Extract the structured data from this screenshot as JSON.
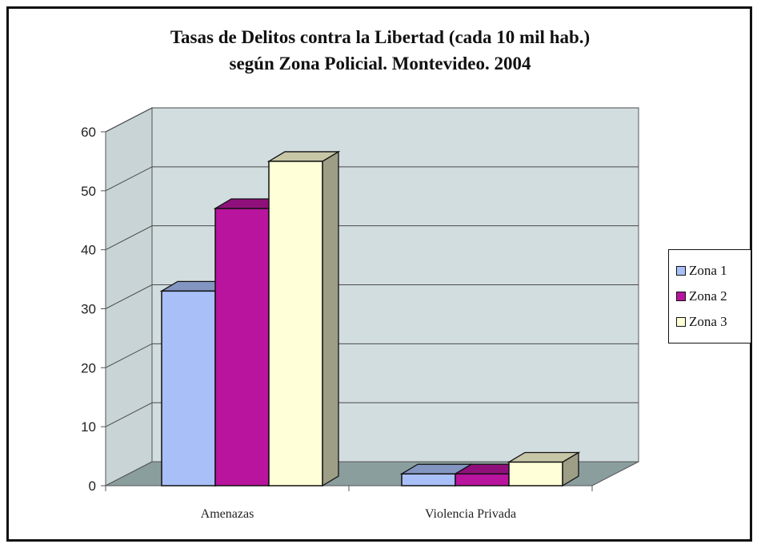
{
  "chart_data": {
    "type": "bar",
    "title_line1": "Tasas de Delitos contra la Libertad (cada 10 mil hab.)",
    "title_line2": "según Zona Policial.  Montevideo. 2004",
    "categories": [
      "Amenazas",
      "Violencia Privada"
    ],
    "series": [
      {
        "name": "Zona 1",
        "color": "#a8bff8",
        "values": [
          33,
          2
        ]
      },
      {
        "name": "Zona 2",
        "color": "#b8149e",
        "values": [
          47,
          2
        ]
      },
      {
        "name": "Zona 3",
        "color": "#ffffd8",
        "values": [
          55,
          4
        ]
      }
    ],
    "yticks": [
      "0",
      "10",
      "20",
      "30",
      "40",
      "50",
      "60"
    ],
    "ylim": [
      0,
      60
    ],
    "grid": true,
    "style": "3d-column",
    "legend_position": "right",
    "plot_wall_color": "#d2dde0",
    "floor_color": "#8a9e9d"
  }
}
